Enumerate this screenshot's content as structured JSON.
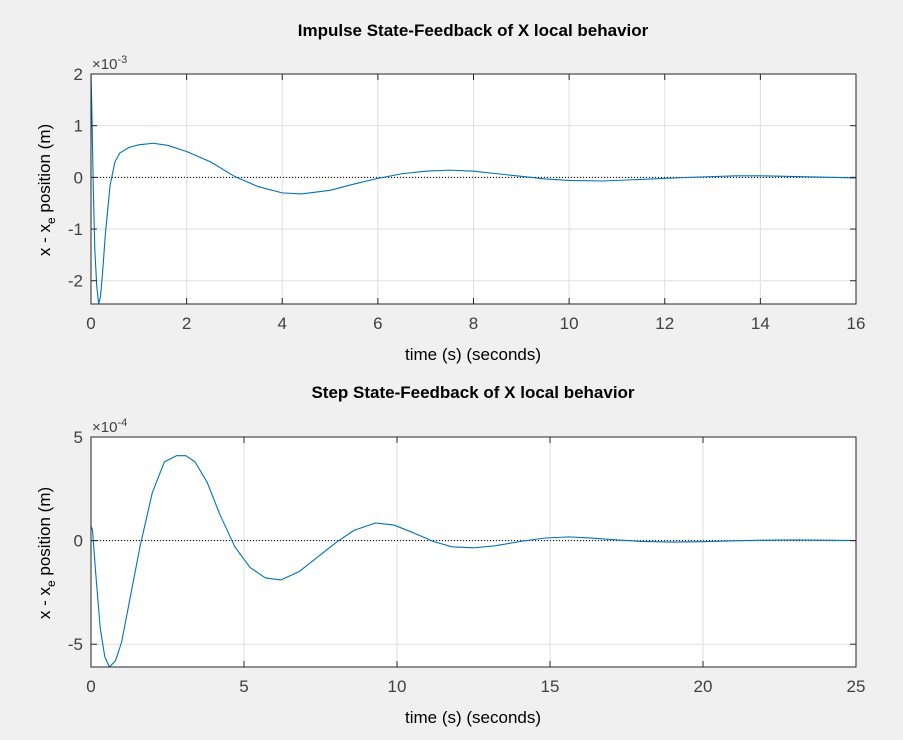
{
  "colors": {
    "figure_bg": "#f0f0f0",
    "axes_bg": "#ffffff",
    "line": "#0072bd",
    "grid": "#dfdfdf",
    "axis": "#262626",
    "text": "#262626",
    "ref_line": "#000000"
  },
  "chart_data": [
    {
      "type": "line",
      "title": "Impulse State-Feedback of X local behavior",
      "xlabel": "time (s) (seconds)",
      "ylabel_main": "x - x",
      "ylabel_sub": "e",
      "ylabel_tail": " position (m)",
      "exponent_base": "×10",
      "exponent_power": "-3",
      "xlim": [
        0,
        16
      ],
      "ylim": [
        -2.45,
        2.0
      ],
      "xticks": [
        0,
        2,
        4,
        6,
        8,
        10,
        12,
        14,
        16
      ],
      "yticks": [
        -2,
        -1,
        0,
        1,
        2
      ],
      "grid": true,
      "reference_line": 0,
      "series": [
        {
          "x": [
            0,
            0.02,
            0.05,
            0.08,
            0.12,
            0.16,
            0.2,
            0.25,
            0.3,
            0.4,
            0.5,
            0.6,
            0.8,
            1.0,
            1.3,
            1.6,
            2.0,
            2.5,
            3.0,
            3.5,
            4.0,
            4.4,
            5.0,
            5.5,
            6.0,
            6.5,
            7.0,
            7.5,
            8.0,
            8.5,
            9.0,
            9.5,
            10.0,
            10.7,
            11.5,
            12.5,
            13.5,
            14.0,
            15.0,
            16.0
          ],
          "y": [
            2.0,
            1.2,
            -0.3,
            -1.4,
            -2.1,
            -2.45,
            -2.3,
            -1.75,
            -1.1,
            -0.15,
            0.3,
            0.47,
            0.58,
            0.63,
            0.66,
            0.62,
            0.5,
            0.3,
            0.02,
            -0.18,
            -0.3,
            -0.32,
            -0.25,
            -0.13,
            -0.02,
            0.07,
            0.12,
            0.14,
            0.12,
            0.07,
            0.02,
            -0.03,
            -0.06,
            -0.07,
            -0.04,
            0.0,
            0.03,
            0.03,
            0.01,
            -0.01
          ]
        }
      ]
    },
    {
      "type": "line",
      "title": "Step State-Feedback of X local behavior",
      "xlabel": "time (s) (seconds)",
      "ylabel_main": "x - x",
      "ylabel_sub": "e",
      "ylabel_tail": " position (m)",
      "exponent_base": "×10",
      "exponent_power": "-4",
      "xlim": [
        0,
        25
      ],
      "ylim": [
        -6.1,
        5.0
      ],
      "xticks": [
        0,
        5,
        10,
        15,
        20,
        25
      ],
      "yticks": [
        -5,
        0,
        5
      ],
      "grid": true,
      "reference_line": 0,
      "series": [
        {
          "x": [
            0,
            0.05,
            0.15,
            0.3,
            0.45,
            0.6,
            0.8,
            1.0,
            1.3,
            1.6,
            2.0,
            2.4,
            2.8,
            3.1,
            3.4,
            3.8,
            4.2,
            4.7,
            5.2,
            5.7,
            6.2,
            6.8,
            7.4,
            8.0,
            8.6,
            9.3,
            9.9,
            10.5,
            11.2,
            11.8,
            12.5,
            13.2,
            14.0,
            14.8,
            15.6,
            16.3,
            17.0,
            18.0,
            19.0,
            20.0,
            21.0,
            22.0,
            23.0,
            24.0,
            25.0
          ],
          "y": [
            0.7,
            0.5,
            -1.5,
            -4.2,
            -5.6,
            -6.1,
            -5.8,
            -4.9,
            -2.6,
            -0.3,
            2.3,
            3.8,
            4.1,
            4.1,
            3.8,
            2.8,
            1.3,
            -0.3,
            -1.3,
            -1.8,
            -1.9,
            -1.5,
            -0.8,
            -0.1,
            0.5,
            0.85,
            0.75,
            0.4,
            -0.05,
            -0.3,
            -0.35,
            -0.25,
            -0.05,
            0.12,
            0.18,
            0.13,
            0.05,
            -0.04,
            -0.07,
            -0.05,
            -0.01,
            0.02,
            0.03,
            0.02,
            0.0
          ]
        }
      ]
    }
  ]
}
